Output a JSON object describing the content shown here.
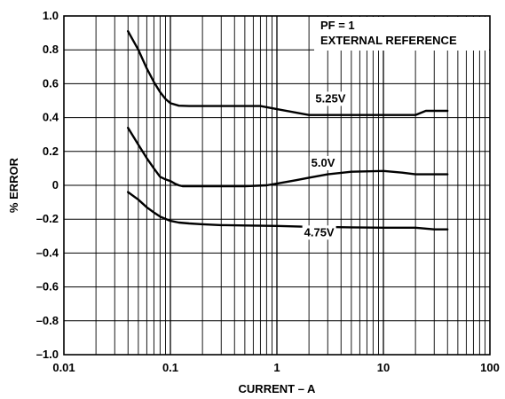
{
  "chart_data": {
    "type": "line",
    "title": "",
    "xlabel": "CURRENT – A",
    "ylabel": "% ERROR",
    "x_scale": "log",
    "xlim": [
      0.01,
      100
    ],
    "ylim": [
      -1.0,
      1.0
    ],
    "x_ticks": [
      0.01,
      0.1,
      1,
      10,
      100
    ],
    "x_tick_labels": [
      "0.01",
      "0.1",
      "1",
      "10",
      "100"
    ],
    "y_ticks": [
      1.0,
      0.8,
      0.6,
      0.4,
      0.2,
      0,
      -0.2,
      -0.4,
      -0.6,
      -0.8,
      -1.0
    ],
    "y_tick_labels": [
      "1.0",
      "0.8",
      "0.6",
      "0.4",
      "0.2",
      "0",
      "–0.2",
      "–0.4",
      "–0.6",
      "–0.8",
      "–1.0"
    ],
    "grid": true,
    "annotation": [
      "PF = 1",
      "EXTERNAL REFERENCE"
    ],
    "line_color": "#000000",
    "series": [
      {
        "name": "5.25V",
        "x": [
          0.04,
          0.05,
          0.06,
          0.07,
          0.08,
          0.09,
          0.1,
          0.12,
          0.15,
          0.2,
          0.3,
          0.5,
          0.7,
          1,
          1.5,
          2,
          3,
          5,
          10,
          20,
          25,
          30,
          40
        ],
        "y": [
          0.91,
          0.8,
          0.69,
          0.61,
          0.55,
          0.51,
          0.485,
          0.47,
          0.468,
          0.468,
          0.468,
          0.468,
          0.468,
          0.45,
          0.43,
          0.415,
          0.415,
          0.415,
          0.415,
          0.415,
          0.44,
          0.44,
          0.44
        ],
        "label_at": [
          2.3,
          0.49
        ]
      },
      {
        "name": "5.0V",
        "x": [
          0.04,
          0.05,
          0.06,
          0.07,
          0.08,
          0.09,
          0.1,
          0.11,
          0.12,
          0.13,
          0.2,
          0.5,
          0.8,
          1,
          1.5,
          2,
          3,
          5,
          10,
          15,
          20,
          40
        ],
        "y": [
          0.34,
          0.24,
          0.16,
          0.1,
          0.05,
          0.035,
          0.025,
          0.01,
          0.0,
          -0.005,
          -0.005,
          -0.005,
          0.0,
          0.01,
          0.03,
          0.045,
          0.065,
          0.08,
          0.085,
          0.075,
          0.065,
          0.065
        ],
        "label_at": [
          2.1,
          0.11
        ]
      },
      {
        "name": "4.75V",
        "x": [
          0.04,
          0.05,
          0.06,
          0.07,
          0.08,
          0.1,
          0.12,
          0.15,
          0.2,
          0.3,
          0.5,
          1,
          2,
          5,
          10,
          20,
          30,
          40
        ],
        "y": [
          -0.04,
          -0.085,
          -0.13,
          -0.16,
          -0.185,
          -0.21,
          -0.22,
          -0.225,
          -0.23,
          -0.235,
          -0.237,
          -0.24,
          -0.245,
          -0.248,
          -0.25,
          -0.25,
          -0.26,
          -0.26
        ],
        "label_at": [
          1.8,
          -0.3
        ]
      }
    ]
  }
}
